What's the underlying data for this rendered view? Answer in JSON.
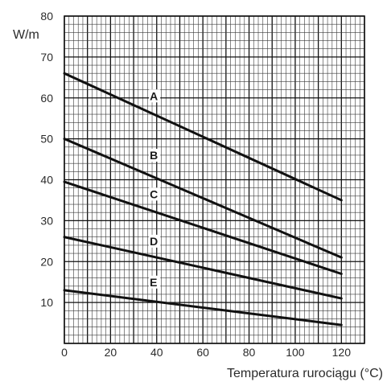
{
  "chart_data": {
    "type": "line",
    "title": "",
    "ylabel": "W/m",
    "xlabel": "Temperatura rurociągu (°C)",
    "xlim": [
      0,
      130
    ],
    "ylim": [
      0,
      80
    ],
    "x_ticks": [
      0,
      20,
      40,
      60,
      80,
      100,
      120
    ],
    "y_ticks": [
      10,
      20,
      30,
      40,
      50,
      60,
      70,
      80
    ],
    "grid": true,
    "series": [
      {
        "name": "A",
        "x": [
          0,
          120
        ],
        "y": [
          66,
          35
        ]
      },
      {
        "name": "B",
        "x": [
          0,
          120
        ],
        "y": [
          50,
          21
        ]
      },
      {
        "name": "C",
        "x": [
          0,
          120
        ],
        "y": [
          39.5,
          17
        ]
      },
      {
        "name": "D",
        "x": [
          0,
          120
        ],
        "y": [
          26,
          11
        ]
      },
      {
        "name": "E",
        "x": [
          0,
          120
        ],
        "y": [
          13,
          4.5
        ]
      }
    ],
    "series_label_positions": [
      {
        "name": "A",
        "x": 37,
        "y": 59.5
      },
      {
        "name": "B",
        "x": 37,
        "y": 45
      },
      {
        "name": "C",
        "x": 37,
        "y": 35.5
      },
      {
        "name": "D",
        "x": 37,
        "y": 24
      },
      {
        "name": "E",
        "x": 37,
        "y": 14
      }
    ]
  }
}
